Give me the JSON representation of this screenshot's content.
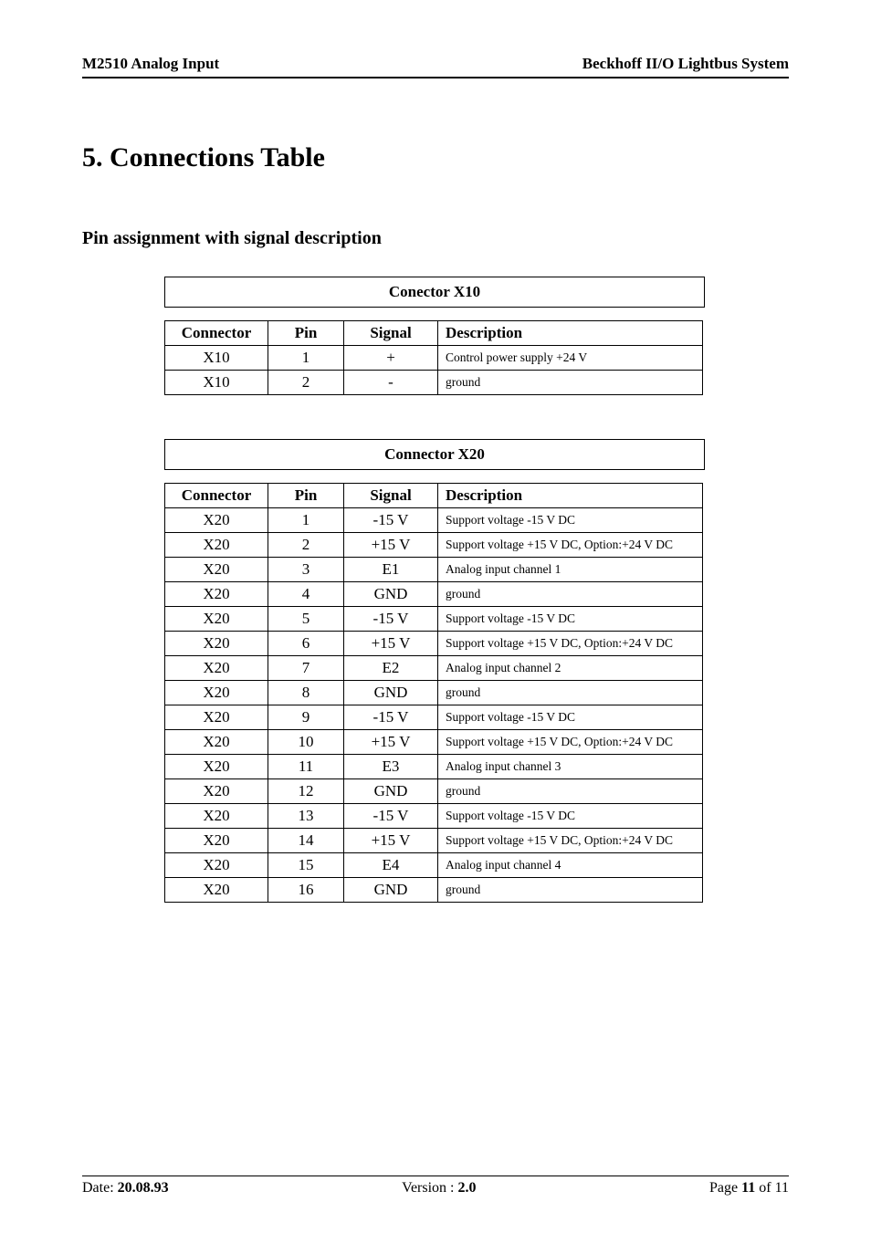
{
  "header": {
    "left": "M2510  Analog Input",
    "right": "Beckhoff II/O Lightbus System"
  },
  "section_title": "5. Connections Table",
  "subheading": "Pin assignment with signal description",
  "x10": {
    "caption": "Conector X10",
    "columns": [
      "Connector",
      "Pin",
      "Signal",
      "Description"
    ],
    "rows": [
      [
        "X10",
        "1",
        "+",
        "Control power supply +24 V"
      ],
      [
        "X10",
        "2",
        "-",
        "ground"
      ]
    ]
  },
  "x20": {
    "caption": "Connector X20",
    "columns": [
      "Connector",
      "Pin",
      "Signal",
      "Description"
    ],
    "rows": [
      [
        "X20",
        "1",
        "-15 V",
        "Support voltage -15 V DC"
      ],
      [
        "X20",
        "2",
        "+15 V",
        "Support voltage +15 V DC, Option:+24 V DC"
      ],
      [
        "X20",
        "3",
        "E1",
        "Analog input channel 1"
      ],
      [
        "X20",
        "4",
        "GND",
        "ground"
      ],
      [
        "X20",
        "5",
        "-15 V",
        "Support voltage -15 V DC"
      ],
      [
        "X20",
        "6",
        "+15 V",
        "Support voltage +15 V DC, Option:+24 V DC"
      ],
      [
        "X20",
        "7",
        "E2",
        "Analog input channel 2"
      ],
      [
        "X20",
        "8",
        "GND",
        "ground"
      ],
      [
        "X20",
        "9",
        "-15 V",
        "Support voltage -15 V DC"
      ],
      [
        "X20",
        "10",
        "+15 V",
        "Support voltage +15 V DC, Option:+24 V DC"
      ],
      [
        "X20",
        "11",
        "E3",
        "Analog input channel 3"
      ],
      [
        "X20",
        "12",
        "GND",
        "ground"
      ],
      [
        "X20",
        "13",
        "-15 V",
        "Support voltage -15 V DC"
      ],
      [
        "X20",
        "14",
        "+15 V",
        "Support voltage +15 V DC, Option:+24 V DC"
      ],
      [
        "X20",
        "15",
        "E4",
        "Analog input channel 4"
      ],
      [
        "X20",
        "16",
        "GND",
        "ground"
      ]
    ]
  },
  "footer": {
    "date_label": "Date: ",
    "date_value": "20.08.93",
    "version_label": "Version : ",
    "version_value": "2.0",
    "page_label": "Page ",
    "page_value": "11",
    "page_of": " of 11"
  }
}
